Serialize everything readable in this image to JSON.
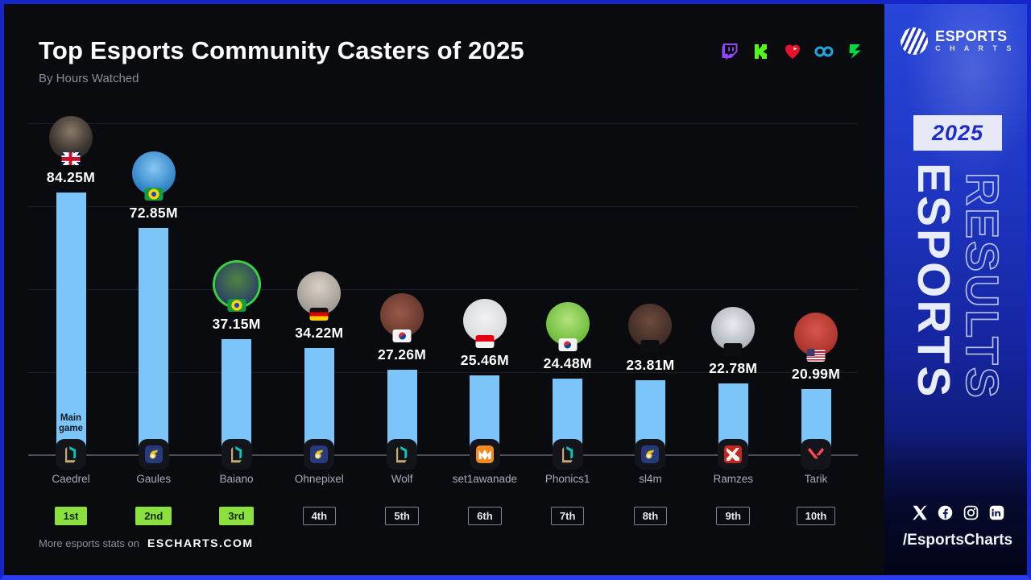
{
  "header": {
    "title": "Top Esports Community Casters of 2025",
    "subtitle": "By Hours Watched",
    "platform_icons": [
      {
        "id": "twitch",
        "name": "twitch-icon"
      },
      {
        "id": "kick",
        "name": "kick-icon"
      },
      {
        "id": "heart",
        "name": "heart-play-icon"
      },
      {
        "id": "soop",
        "name": "soop-infinity-icon"
      },
      {
        "id": "chzzk",
        "name": "chzzk-bolt-icon"
      }
    ]
  },
  "chart_data": {
    "type": "bar",
    "title": "Top Esports Community Casters of 2025",
    "metric": "Hours Watched",
    "unit": "millions of hours",
    "bar_color": "#7cc5f8",
    "highlight_badge_color": "#8ce03e",
    "ylim": [
      0,
      90
    ],
    "categories": [
      "Caedrel",
      "Gaules",
      "Baiano",
      "Ohnepixel",
      "Wolf",
      "set1awanade",
      "Phonics1",
      "sl4m",
      "Ramzes",
      "Tarik"
    ],
    "values": [
      84.25,
      72.85,
      37.15,
      34.22,
      27.26,
      25.46,
      24.48,
      23.81,
      22.78,
      20.99
    ],
    "casters": [
      {
        "rank": "1st",
        "highlighted": true,
        "name": "Caedrel",
        "value": 84.25,
        "value_label": "84.25M",
        "flag": "gb",
        "flag_name": "uk-flag",
        "game": "lol",
        "game_name": "league-of-legends-icon",
        "main_game_label": "Main game",
        "avatar_bg": "radial-gradient(circle at 50% 35%, #8a7866, #3a3430 60%, #201d1b)"
      },
      {
        "rank": "2nd",
        "highlighted": true,
        "name": "Gaules",
        "value": 72.85,
        "value_label": "72.85M",
        "flag": "br",
        "flag_name": "brazil-flag",
        "game": "cs2",
        "game_name": "counter-strike-icon",
        "avatar_bg": "radial-gradient(circle at 50% 38%, #86c8f2, #3486c8 65%, #1d5f99)"
      },
      {
        "rank": "3rd",
        "highlighted": true,
        "name": "Baiano",
        "value": 37.15,
        "value_label": "37.15M",
        "flag": "br",
        "flag_name": "brazil-flag",
        "game": "lol",
        "game_name": "league-of-legends-icon",
        "ring": "#38d43c",
        "avatar_bg": "radial-gradient(circle at 50% 40%, #4f8440, #2a3f67 75%, #1d2c4e)"
      },
      {
        "rank": "4th",
        "highlighted": false,
        "name": "Ohnepixel",
        "value": 34.22,
        "value_label": "34.22M",
        "flag": "de",
        "flag_name": "germany-flag",
        "game": "cs2",
        "game_name": "counter-strike-icon",
        "avatar_bg": "radial-gradient(circle at 50% 35%, #d9d0c5, #9b958d 80%, #837d76)"
      },
      {
        "rank": "5th",
        "highlighted": false,
        "name": "Wolf",
        "value": 27.26,
        "value_label": "27.26M",
        "flag": "kr",
        "flag_name": "south-korea-flag",
        "game": "lol",
        "game_name": "league-of-legends-icon",
        "avatar_bg": "radial-gradient(circle at 45% 45%, #9a5a48, #5e332a 80%, #46251e)"
      },
      {
        "rank": "6th",
        "highlighted": false,
        "name": "set1awanade",
        "value": 25.46,
        "value_label": "25.46M",
        "flag": "id",
        "flag_name": "indonesia-flag",
        "game": "mlbb",
        "game_name": "mobile-legends-icon",
        "avatar_bg": "radial-gradient(circle at 50% 45%, #f2f2f4, #d7d8dc 80%, #c6c8cd)"
      },
      {
        "rank": "7th",
        "highlighted": false,
        "name": "Phonics1",
        "value": 24.48,
        "value_label": "24.48M",
        "flag": "kr",
        "flag_name": "south-korea-flag",
        "game": "lol",
        "game_name": "league-of-legends-icon",
        "avatar_bg": "radial-gradient(circle at 50% 40%, #b5e27d, #64b834 80%, #4b9c24)"
      },
      {
        "rank": "8th",
        "highlighted": false,
        "name": "sl4m",
        "value": 23.81,
        "value_label": "23.81M",
        "flag": "censored",
        "flag_name": "censored-flag",
        "game": "cs2",
        "game_name": "counter-strike-icon",
        "avatar_bg": "radial-gradient(circle at 50% 40%, #6e4a3c, #3a2823 80%, #2a1d19)"
      },
      {
        "rank": "9th",
        "highlighted": false,
        "name": "Ramzes",
        "value": 22.78,
        "value_label": "22.78M",
        "flag": "censored",
        "flag_name": "censored-flag",
        "game": "dota2",
        "game_name": "dota-2-icon",
        "avatar_bg": "radial-gradient(circle at 50% 40%, #e9ebee, #a9afb6 80%, #8f959c)"
      },
      {
        "rank": "10th",
        "highlighted": false,
        "name": "Tarik",
        "value": 20.99,
        "value_label": "20.99M",
        "flag": "us",
        "flag_name": "usa-flag",
        "game": "valorant",
        "game_name": "valorant-icon",
        "avatar_bg": "radial-gradient(circle at 50% 40%, #d8564c, #a52f28 80%, #8b241e)"
      }
    ]
  },
  "footer": {
    "text": "More esports stats on",
    "site": "ESCHARTS.COM"
  },
  "sidebar": {
    "logo": {
      "line1": "ESPORTS",
      "line2": "C H A R T S"
    },
    "year": "2025",
    "vertical_words": {
      "solid": "ESPORTS",
      "outline": "RESULTS"
    },
    "social_icons": [
      {
        "id": "x",
        "name": "x-twitter-icon"
      },
      {
        "id": "facebook",
        "name": "facebook-icon"
      },
      {
        "id": "instagram",
        "name": "instagram-icon"
      },
      {
        "id": "linkedin",
        "name": "linkedin-icon"
      }
    ],
    "handle": "/EsportsCharts"
  }
}
